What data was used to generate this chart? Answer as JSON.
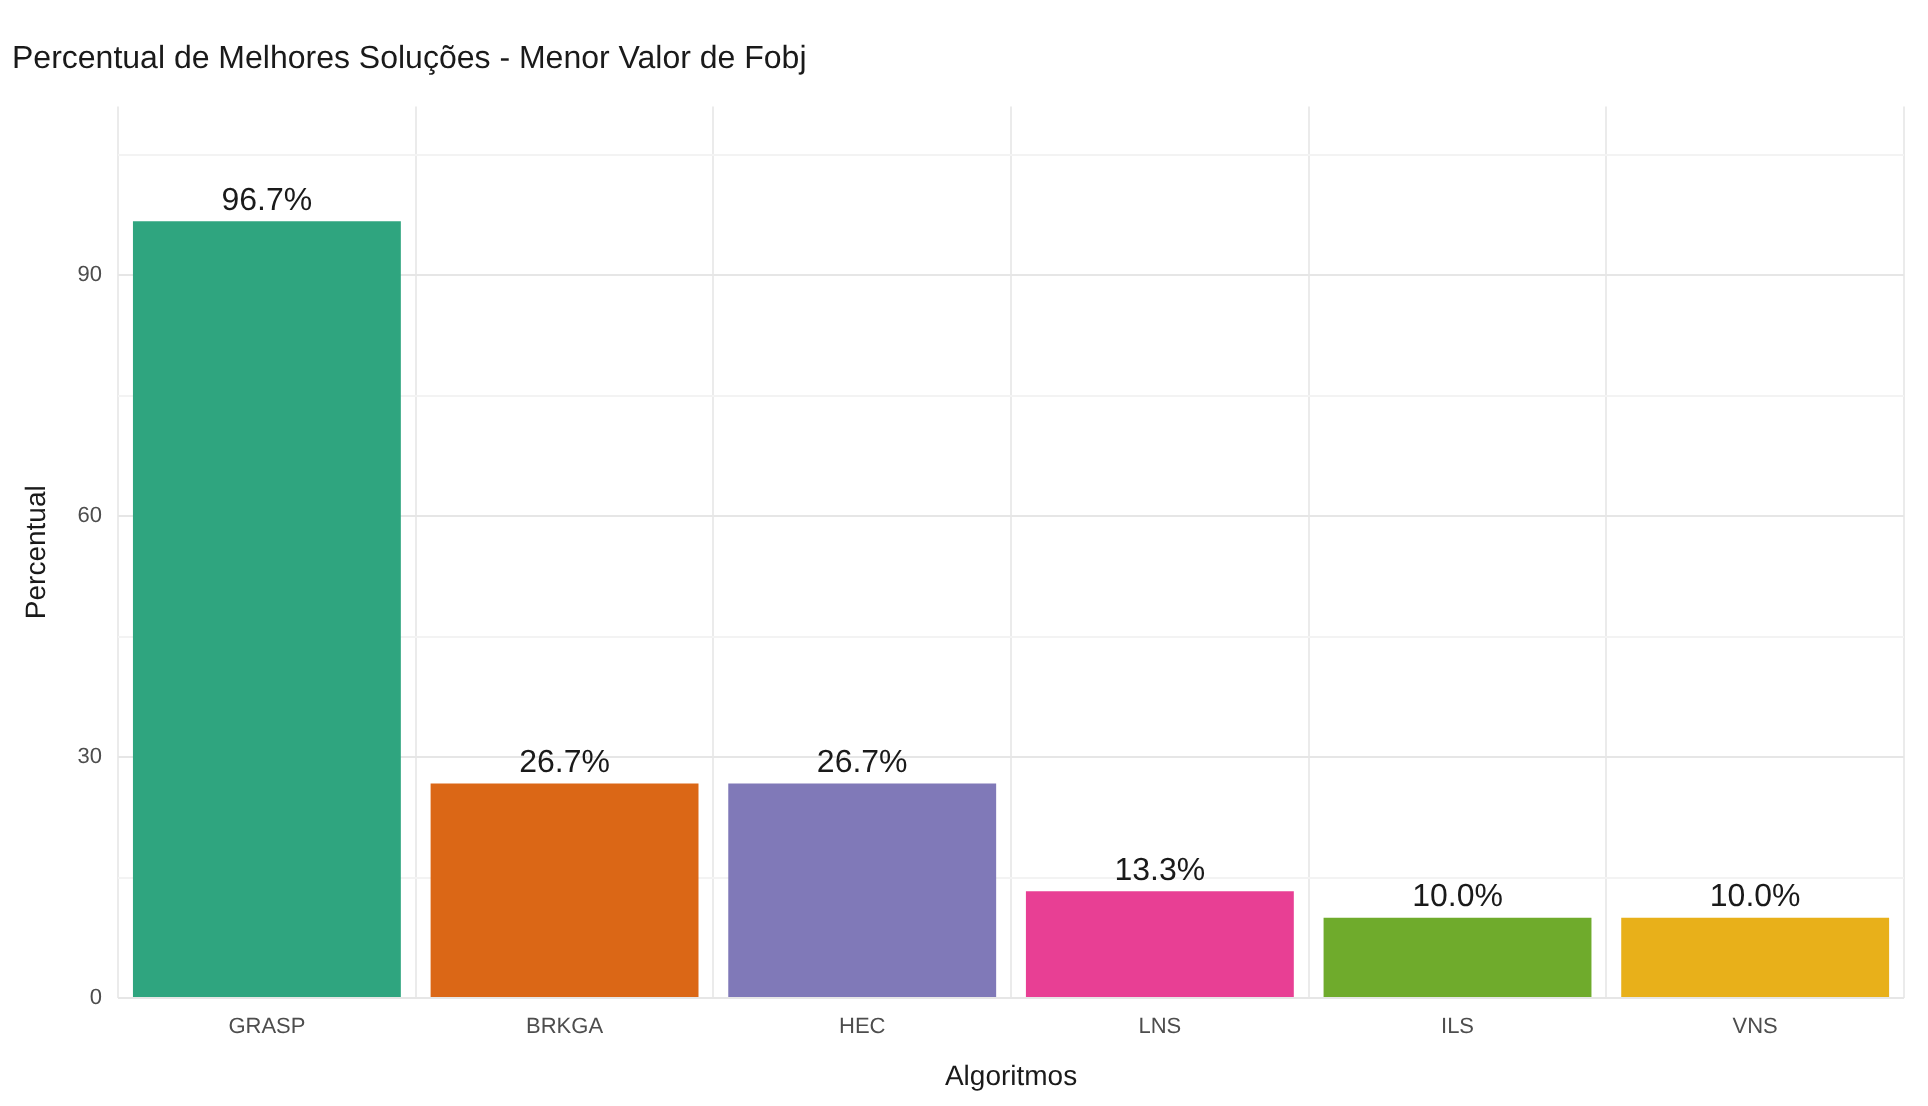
{
  "chart_data": {
    "type": "bar",
    "title": "Percentual de Melhores Soluções - Menor Valor de Fobj",
    "xlabel": "Algoritmos",
    "ylabel": "Percentual",
    "categories": [
      "GRASP",
      "BRKGA",
      "HEC",
      "LNS",
      "ILS",
      "VNS"
    ],
    "values": [
      96.7,
      26.7,
      26.7,
      13.3,
      10.0,
      10.0
    ],
    "colors": [
      "#2fa57f",
      "#db6716",
      "#8079b8",
      "#e83f94",
      "#6fab2c",
      "#e8b01a"
    ],
    "value_labels": [
      "96.7%",
      "26.7%",
      "26.7%",
      "13.3%",
      "10.0%",
      "10.0%"
    ],
    "ylim": [
      0,
      111
    ],
    "yticks": [
      0,
      {
        "value": 15,
        "label": null
      },
      30,
      {
        "value": 45,
        "label": null
      },
      60,
      {
        "value": 75,
        "label": null
      },
      90,
      {
        "value": 105,
        "label": null
      }
    ],
    "grid": true,
    "legend": false
  }
}
